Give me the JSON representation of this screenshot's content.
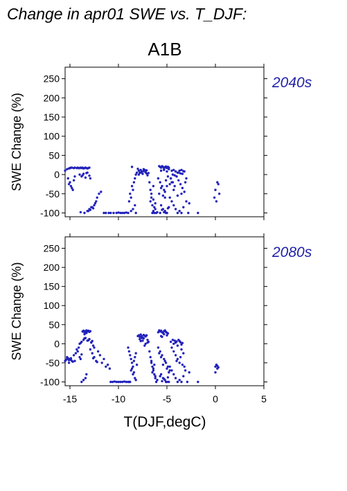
{
  "figure": {
    "title": "Change in apr01 SWE vs. T_DJF:",
    "scenario": "A1B",
    "xlabel": "T(DJF,degC)",
    "ylabel": "SWE Change (%)",
    "point_color": "#2222bb",
    "label_color": "#2222aa"
  },
  "chart_data": [
    {
      "type": "scatter",
      "panel_label": "2040s",
      "xlabel": "",
      "ylabel": "SWE Change (%)",
      "xlim": [
        -15.5,
        5
      ],
      "ylim": [
        -110,
        280
      ],
      "xticks": [
        -15,
        -10,
        -5,
        0,
        5
      ],
      "yticks": [
        -100,
        -50,
        0,
        50,
        100,
        150,
        200,
        250
      ],
      "series": [
        {
          "x": [
            -15.5,
            -15.3,
            -15.1,
            -15.0,
            -14.9,
            -14.8,
            -14.6,
            -14.5,
            -14.3,
            -14.2,
            -14.1,
            -14.0,
            -13.9,
            -13.8,
            -13.7,
            -13.6,
            -13.5,
            -13.4,
            -13.3,
            -13.2,
            -13.1,
            -13.0,
            -15.2,
            -15.0,
            -14.9,
            -14.7,
            -14.6,
            -14.5,
            -14.8,
            -15.1,
            -14.0,
            -13.8,
            -13.6,
            -13.4,
            -13.2,
            -13.0,
            -12.9,
            -13.7,
            -13.3,
            -13.5,
            -13.2,
            -13.0,
            -12.8,
            -12.6,
            -12.5,
            -12.7,
            -12.9,
            -12.4,
            -12.2,
            -12.0,
            -12.3,
            -11.8,
            -13.9,
            -13.1,
            -11.5,
            -11.3,
            -11.0,
            -10.8,
            -10.5,
            -10.2,
            -10.0,
            -9.8,
            -9.6,
            -9.4,
            -9.2,
            -9.0,
            -8.7,
            -8.5,
            -8.4,
            -8.3,
            -8.2,
            -8.1,
            -8.6,
            -8.8,
            -8.3,
            -8.5,
            -8.2,
            -8.7,
            -8.6,
            -8.9,
            -8.0,
            -7.9,
            -7.8,
            -7.7,
            -7.6,
            -7.5,
            -7.4,
            -7.3,
            -7.2,
            -7.1,
            -7.0,
            -7.9,
            -7.6,
            -7.3,
            -7.7,
            -7.4,
            -7.1,
            -6.9,
            -6.8,
            -6.7,
            -6.6,
            -6.5,
            -6.4,
            -6.3,
            -6.2,
            -6.6,
            -6.4,
            -6.7,
            -6.3,
            -6.5,
            -6.2,
            -6.0,
            -6.1,
            -6.4,
            -5.8,
            -5.7,
            -5.6,
            -5.5,
            -5.4,
            -5.3,
            -5.2,
            -5.1,
            -5.0,
            -4.9,
            -4.8,
            -5.6,
            -5.3,
            -5.0,
            -4.8,
            -5.9,
            -5.7,
            -5.5,
            -5.3,
            -5.1,
            -4.9,
            -4.7,
            -5.6,
            -5.2,
            -5.4,
            -5.0,
            -4.6,
            -4.5,
            -5.8,
            -5.2,
            -5.6,
            -5.4,
            -5.2,
            -5.0,
            -4.8,
            -5.7,
            -5.3,
            -5.5,
            -5.1,
            -4.9,
            -4.5,
            -4.3,
            -4.1,
            -3.9,
            -3.7,
            -3.5,
            -3.3,
            -4.4,
            -4.0,
            -3.6,
            -3.2,
            -4.2,
            -3.8,
            -3.4,
            -4.6,
            -4.4,
            -4.2,
            -4.0,
            -3.8,
            -3.6,
            -3.4,
            -3.2,
            -3.1,
            -3.0,
            -4.3,
            -3.9,
            -3.5,
            -4.7,
            -4.5,
            -4.3,
            -4.1,
            -3.9,
            -3.7,
            -3.5,
            -3.3,
            -3.0,
            -2.8,
            -2.7,
            -1.8,
            -0.1,
            0.0,
            0.2,
            0.3,
            0.1,
            0.4
          ],
          "y": [
            10,
            14,
            16,
            17,
            18,
            18,
            17,
            18,
            17,
            18,
            17,
            17,
            18,
            17,
            18,
            16,
            17,
            18,
            17,
            16,
            17,
            18,
            -10,
            -20,
            -30,
            -40,
            -15,
            -5,
            -35,
            -25,
            0,
            -5,
            2,
            -8,
            5,
            -3,
            -10,
            -2,
            4,
            -100,
            -95,
            -90,
            -85,
            -88,
            -80,
            -85,
            -92,
            -75,
            -60,
            -50,
            -70,
            -45,
            -98,
            -95,
            -100,
            -100,
            -100,
            -100,
            -100,
            -100,
            -99,
            -100,
            -100,
            -100,
            -99,
            -100,
            -60,
            -40,
            -20,
            -10,
            0,
            5,
            -30,
            -50,
            -80,
            -90,
            -100,
            -95,
            20,
            -70,
            15,
            10,
            5,
            12,
            8,
            2,
            14,
            10,
            6,
            3,
            -2,
            0,
            7,
            12,
            5,
            9,
            11,
            4,
            -20,
            -40,
            -60,
            -80,
            -95,
            -100,
            -90,
            -50,
            -30,
            -70,
            -85,
            -100,
            -75,
            -98,
            -100,
            -65,
            22,
            20,
            18,
            22,
            20,
            15,
            19,
            21,
            17,
            20,
            18,
            10,
            12,
            8,
            14,
            -10,
            -20,
            -30,
            -40,
            -15,
            -5,
            -25,
            -35,
            -45,
            -55,
            -30,
            -10,
            -20,
            -50,
            -60,
            -80,
            -90,
            -95,
            -100,
            -85,
            -100,
            -98,
            -92,
            -100,
            -88,
            10,
            12,
            8,
            5,
            10,
            12,
            9,
            0,
            -5,
            3,
            8,
            -2,
            5,
            2,
            -10,
            -20,
            -30,
            -5,
            -15,
            -25,
            -35,
            -45,
            -20,
            -10,
            -40,
            -55,
            -50,
            -60,
            -70,
            -80,
            -90,
            -100,
            -95,
            -100,
            -85,
            -70,
            -100,
            -75,
            -100,
            -60,
            -40,
            -20,
            -25,
            -70,
            -50
          ]
        }
      ]
    },
    {
      "type": "scatter",
      "panel_label": "2080s",
      "xlabel": "T(DJF,degC)",
      "ylabel": "SWE Change (%)",
      "xlim": [
        -15.5,
        5
      ],
      "ylim": [
        -110,
        280
      ],
      "xticks": [
        -15,
        -10,
        -5,
        0,
        5
      ],
      "yticks": [
        -100,
        -50,
        0,
        50,
        100,
        150,
        200,
        250
      ],
      "series": [
        {
          "x": [
            -15.5,
            -15.4,
            -15.3,
            -15.2,
            -15.1,
            -15.0,
            -14.9,
            -14.8,
            -14.7,
            -15.3,
            -15.1,
            -14.9,
            -14.6,
            -14.4,
            -14.2,
            -14.0,
            -13.9,
            -13.8,
            -14.5,
            -14.3,
            -14.1,
            -13.7,
            -13.6,
            -13.5,
            -13.4,
            -13.3,
            -13.2,
            -13.1,
            -13.0,
            -12.9,
            -13.5,
            -13.3,
            -14.0,
            -13.8,
            -13.6,
            -13.4,
            -13.2,
            -13.0,
            -12.8,
            -12.6,
            -12.5,
            -12.7,
            -13.9,
            -13.5,
            -13.1,
            -12.8,
            -12.9,
            -12.7,
            -12.5,
            -12.3,
            -12.1,
            -11.9,
            -11.7,
            -11.5,
            -11.3,
            -11.1,
            -10.9,
            -12.6,
            -12.2,
            -13.8,
            -13.6,
            -13.4,
            -13.3,
            -10.8,
            -10.6,
            -10.4,
            -10.2,
            -10.0,
            -9.8,
            -9.6,
            -9.4,
            -9.2,
            -9.0,
            -8.8,
            -9.0,
            -8.9,
            -8.8,
            -8.7,
            -8.6,
            -8.5,
            -8.4,
            -8.3,
            -8.2,
            -8.1,
            -8.7,
            -8.5,
            -8.3,
            -8.9,
            -8.6,
            -8.4,
            -8.2,
            -8.0,
            -7.9,
            -7.8,
            -7.7,
            -7.6,
            -7.5,
            -7.4,
            -7.3,
            -7.2,
            -7.1,
            -7.0,
            -6.9,
            -7.8,
            -7.5,
            -7.2,
            -7.6,
            -7.3,
            -7.0,
            -7.7,
            -7.4,
            -6.8,
            -6.7,
            -6.6,
            -6.5,
            -6.4,
            -6.3,
            -6.2,
            -6.1,
            -6.6,
            -6.4,
            -6.2,
            -6.0,
            -6.5,
            -6.3,
            -5.9,
            -5.8,
            -5.7,
            -5.6,
            -5.5,
            -5.4,
            -5.3,
            -5.2,
            -5.1,
            -5.0,
            -4.9,
            -5.6,
            -5.3,
            -5.0,
            -5.5,
            -5.9,
            -5.7,
            -5.5,
            -5.3,
            -5.1,
            -4.9,
            -4.7,
            -5.6,
            -5.2,
            -5.4,
            -5.0,
            -4.8,
            -5.8,
            -5.6,
            -5.4,
            -5.2,
            -5.0,
            -4.8,
            -5.7,
            -5.3,
            -5.5,
            -5.1,
            -4.9,
            -4.6,
            -4.4,
            -4.2,
            -4.0,
            -3.8,
            -3.6,
            -3.4,
            -4.3,
            -3.9,
            -3.5,
            -4.1,
            -3.7,
            -4.5,
            -4.3,
            -4.1,
            -3.9,
            -3.7,
            -3.5,
            -3.3,
            -3.6,
            -4.0,
            -3.4,
            -3.2,
            -4.7,
            -4.5,
            -4.3,
            -4.1,
            -3.9,
            -3.7,
            -3.5,
            -3.3,
            -3.1,
            -2.9,
            -2.7,
            -1.8,
            0.0,
            0.1,
            0.2,
            0.3,
            0.0,
            0.2
          ],
          "y": [
            -45,
            -42,
            -40,
            -38,
            -43,
            -40,
            -38,
            -45,
            -47,
            -35,
            -50,
            -42,
            -30,
            -25,
            -20,
            -35,
            -40,
            -28,
            -45,
            -15,
            -10,
            32,
            34,
            30,
            33,
            35,
            32,
            34,
            31,
            33,
            25,
            28,
            0,
            5,
            10,
            15,
            8,
            12,
            3,
            -5,
            -10,
            7,
            2,
            14,
            9,
            4,
            -15,
            -25,
            -35,
            -45,
            -20,
            -30,
            -50,
            -40,
            -60,
            -55,
            -65,
            -38,
            -48,
            -100,
            -95,
            -90,
            -80,
            -100,
            -100,
            -99,
            -100,
            -100,
            -100,
            -100,
            -99,
            -100,
            -100,
            -100,
            -10,
            -20,
            -30,
            -40,
            -50,
            -60,
            -45,
            -35,
            -25,
            -55,
            -70,
            -80,
            -90,
            -100,
            -65,
            -75,
            -95,
            20,
            22,
            18,
            24,
            20,
            16,
            23,
            21,
            19,
            22,
            10,
            5,
            12,
            8,
            0,
            15,
            -5,
            3,
            7,
            14,
            -20,
            -35,
            -50,
            -60,
            -70,
            -80,
            -90,
            -100,
            -45,
            -65,
            -85,
            -95,
            -75,
            -55,
            30,
            35,
            32,
            34,
            30,
            28,
            33,
            35,
            31,
            29,
            27,
            20,
            25,
            22,
            18,
            -10,
            -20,
            -30,
            -40,
            -50,
            -60,
            -70,
            -35,
            -45,
            -55,
            -65,
            -75,
            -25,
            -80,
            -90,
            -95,
            -100,
            -100,
            -85,
            -92,
            -98,
            -100,
            -88,
            5,
            10,
            8,
            6,
            10,
            4,
            2,
            0,
            -5,
            -2,
            3,
            7,
            -10,
            -20,
            -30,
            -40,
            -50,
            -15,
            -25,
            -35,
            -45,
            -55,
            -60,
            -60,
            -70,
            -80,
            -90,
            -100,
            -95,
            -100,
            -85,
            -70,
            -100,
            -75,
            -100,
            -60,
            -55,
            -58,
            -62,
            -75,
            -65
          ]
        }
      ]
    }
  ]
}
